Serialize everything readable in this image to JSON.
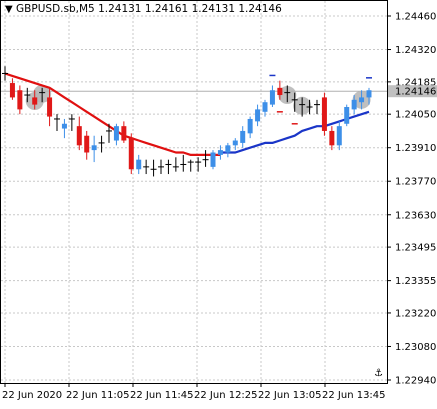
{
  "header": {
    "symbol": "GBPUSD.sb,M5",
    "ohlc": "1.24131 1.24161 1.24131 1.24146"
  },
  "colors": {
    "background": "#ffffff",
    "grid": "#c8c8c8",
    "bull_candle": "#3d8fe8",
    "bear_candle": "#e01818",
    "doji_candle": "#000000",
    "ma_red": "#e01010",
    "ma_blue": "#1a35c8",
    "price_tag_bg": "#c0c0c0",
    "highlight_circle": "#b4b4b4"
  },
  "chart_data": {
    "type": "candlestick",
    "y_ticks": [
      "1.24460",
      "1.24320",
      "1.24185",
      "1.24050",
      "1.23910",
      "1.23770",
      "1.23630",
      "1.23495",
      "1.23355",
      "1.23220",
      "1.23080",
      "1.22940"
    ],
    "x_ticks": [
      "22 Jun 2020",
      "22 Jun 11:05",
      "22 Jun 11:45",
      "22 Jun 12:25",
      "22 Jun 13:05",
      "22 Jun 13:45"
    ],
    "ylim": [
      1.2294,
      1.2446
    ],
    "current_price": "1.24146",
    "candles": [
      {
        "o": 1.2422,
        "h": 1.2425,
        "l": 1.2419,
        "c": 1.2422,
        "dir": "doji"
      },
      {
        "o": 1.2418,
        "h": 1.242,
        "l": 1.2411,
        "c": 1.2412,
        "dir": "bear"
      },
      {
        "o": 1.2415,
        "h": 1.2417,
        "l": 1.2405,
        "c": 1.2407,
        "dir": "bear"
      },
      {
        "o": 1.2413,
        "h": 1.2416,
        "l": 1.241,
        "c": 1.2413,
        "dir": "doji"
      },
      {
        "o": 1.2412,
        "h": 1.2415,
        "l": 1.2407,
        "c": 1.2409,
        "dir": "bear"
      },
      {
        "o": 1.2414,
        "h": 1.2416,
        "l": 1.241,
        "c": 1.2413,
        "dir": "doji"
      },
      {
        "o": 1.2412,
        "h": 1.2416,
        "l": 1.24,
        "c": 1.2404,
        "dir": "bear"
      },
      {
        "o": 1.2403,
        "h": 1.2405,
        "l": 1.2398,
        "c": 1.24,
        "dir": "doji"
      },
      {
        "o": 1.2399,
        "h": 1.2403,
        "l": 1.2395,
        "c": 1.2401,
        "dir": "bull"
      },
      {
        "o": 1.2403,
        "h": 1.2405,
        "l": 1.2398,
        "c": 1.24,
        "dir": "doji"
      },
      {
        "o": 1.24,
        "h": 1.2404,
        "l": 1.239,
        "c": 1.2392,
        "dir": "bear"
      },
      {
        "o": 1.2396,
        "h": 1.2398,
        "l": 1.2386,
        "c": 1.2389,
        "dir": "bear"
      },
      {
        "o": 1.239,
        "h": 1.2396,
        "l": 1.2385,
        "c": 1.2392,
        "dir": "bull"
      },
      {
        "o": 1.2393,
        "h": 1.2396,
        "l": 1.2389,
        "c": 1.2391,
        "dir": "doji"
      },
      {
        "o": 1.2398,
        "h": 1.2401,
        "l": 1.2393,
        "c": 1.2397,
        "dir": "doji"
      },
      {
        "o": 1.2394,
        "h": 1.2401,
        "l": 1.2392,
        "c": 1.24,
        "dir": "bull"
      },
      {
        "o": 1.24,
        "h": 1.2402,
        "l": 1.2393,
        "c": 1.2394,
        "dir": "bear"
      },
      {
        "o": 1.2395,
        "h": 1.2397,
        "l": 1.238,
        "c": 1.2382,
        "dir": "bear"
      },
      {
        "o": 1.2382,
        "h": 1.2388,
        "l": 1.238,
        "c": 1.2386,
        "dir": "bull"
      },
      {
        "o": 1.2383,
        "h": 1.2386,
        "l": 1.238,
        "c": 1.2382,
        "dir": "doji"
      },
      {
        "o": 1.2382,
        "h": 1.2386,
        "l": 1.2379,
        "c": 1.2382,
        "dir": "doji"
      },
      {
        "o": 1.2383,
        "h": 1.2386,
        "l": 1.238,
        "c": 1.2383,
        "dir": "doji"
      },
      {
        "o": 1.2384,
        "h": 1.2386,
        "l": 1.238,
        "c": 1.2382,
        "dir": "doji"
      },
      {
        "o": 1.2383,
        "h": 1.2387,
        "l": 1.2381,
        "c": 1.2383,
        "dir": "doji"
      },
      {
        "o": 1.2384,
        "h": 1.2388,
        "l": 1.2381,
        "c": 1.2383,
        "dir": "doji"
      },
      {
        "o": 1.2383,
        "h": 1.2386,
        "l": 1.2381,
        "c": 1.2385,
        "dir": "doji"
      },
      {
        "o": 1.2384,
        "h": 1.2387,
        "l": 1.2381,
        "c": 1.2385,
        "dir": "doji"
      },
      {
        "o": 1.2385,
        "h": 1.239,
        "l": 1.2383,
        "c": 1.2386,
        "dir": "doji"
      },
      {
        "o": 1.2383,
        "h": 1.239,
        "l": 1.2382,
        "c": 1.2389,
        "dir": "bull"
      },
      {
        "o": 1.2388,
        "h": 1.2392,
        "l": 1.2386,
        "c": 1.239,
        "dir": "bull"
      },
      {
        "o": 1.2389,
        "h": 1.2393,
        "l": 1.2387,
        "c": 1.2392,
        "dir": "bull"
      },
      {
        "o": 1.2392,
        "h": 1.2395,
        "l": 1.239,
        "c": 1.2394,
        "dir": "bull"
      },
      {
        "o": 1.2393,
        "h": 1.24,
        "l": 1.2391,
        "c": 1.2398,
        "dir": "bull"
      },
      {
        "o": 1.2397,
        "h": 1.2404,
        "l": 1.2395,
        "c": 1.2403,
        "dir": "bull"
      },
      {
        "o": 1.2402,
        "h": 1.2409,
        "l": 1.24,
        "c": 1.2407,
        "dir": "bull"
      },
      {
        "o": 1.2406,
        "h": 1.2411,
        "l": 1.2404,
        "c": 1.241,
        "dir": "bull"
      },
      {
        "o": 1.2409,
        "h": 1.2417,
        "l": 1.2408,
        "c": 1.2415,
        "dir": "bull"
      },
      {
        "o": 1.2416,
        "h": 1.2419,
        "l": 1.2411,
        "c": 1.2413,
        "dir": "bear"
      },
      {
        "o": 1.2414,
        "h": 1.2417,
        "l": 1.241,
        "c": 1.2412,
        "dir": "doji"
      },
      {
        "o": 1.2411,
        "h": 1.2414,
        "l": 1.2406,
        "c": 1.2409,
        "dir": "doji"
      },
      {
        "o": 1.2409,
        "h": 1.2412,
        "l": 1.2404,
        "c": 1.2408,
        "dir": "doji"
      },
      {
        "o": 1.2408,
        "h": 1.2411,
        "l": 1.2405,
        "c": 1.2406,
        "dir": "doji"
      },
      {
        "o": 1.2407,
        "h": 1.2411,
        "l": 1.2405,
        "c": 1.2409,
        "dir": "doji"
      },
      {
        "o": 1.2412,
        "h": 1.2414,
        "l": 1.2396,
        "c": 1.2398,
        "dir": "bear"
      },
      {
        "o": 1.2398,
        "h": 1.24,
        "l": 1.239,
        "c": 1.2392,
        "dir": "bear"
      },
      {
        "o": 1.2392,
        "h": 1.2402,
        "l": 1.239,
        "c": 1.24,
        "dir": "bull"
      },
      {
        "o": 1.2401,
        "h": 1.2409,
        "l": 1.24,
        "c": 1.2408,
        "dir": "bull"
      },
      {
        "o": 1.2407,
        "h": 1.2413,
        "l": 1.2405,
        "c": 1.2411,
        "dir": "bull"
      },
      {
        "o": 1.241,
        "h": 1.2415,
        "l": 1.2407,
        "c": 1.2412,
        "dir": "bull"
      },
      {
        "o": 1.2412,
        "h": 1.2416,
        "l": 1.2409,
        "c": 1.2415,
        "dir": "bull"
      }
    ],
    "ma_red": [
      1.2422,
      1.2421,
      1.242,
      1.2419,
      1.2418,
      1.2417,
      1.2416,
      1.2414,
      1.2412,
      1.241,
      1.2408,
      1.2406,
      1.2404,
      1.2402,
      1.24,
      1.2398,
      1.2396,
      1.2395,
      1.2394,
      1.2393,
      1.2392,
      1.2391,
      1.239,
      1.2389,
      1.2389,
      1.2388,
      1.2388,
      1.2388,
      1.2388,
      1.2388
    ],
    "ma_red_start": 0,
    "ma_blue": [
      1.2389,
      1.2389,
      1.2389,
      1.239,
      1.2391,
      1.2392,
      1.2393,
      1.2393,
      1.2394,
      1.2395,
      1.2396,
      1.2398,
      1.2399,
      1.24,
      1.24,
      1.2401,
      1.2402,
      1.2403,
      1.2404,
      1.2405,
      1.2406
    ],
    "ma_blue_start": 29,
    "highlights": [
      4,
      5,
      38,
      40,
      48
    ],
    "markers_red_dash": [
      37,
      39
    ],
    "markers_blue_dash": [
      36,
      49
    ]
  }
}
